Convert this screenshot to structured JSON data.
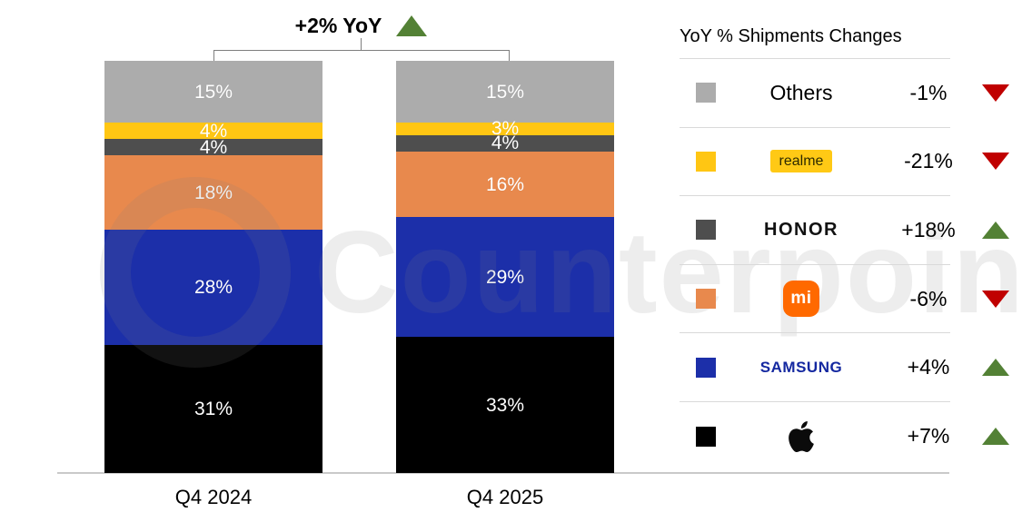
{
  "watermark": "Counterpoint",
  "title": {
    "label": "+2% YoY",
    "direction": "up"
  },
  "chart_data": {
    "type": "bar",
    "stacked": true,
    "title": "+2% YoY",
    "categories": [
      "Q4 2024",
      "Q4 2025"
    ],
    "series": [
      {
        "name": "Apple",
        "color": "#000000",
        "values": [
          31,
          33
        ]
      },
      {
        "name": "Samsung",
        "color": "#1c2fa9",
        "values": [
          28,
          29
        ]
      },
      {
        "name": "Xiaomi",
        "color": "#e8894d",
        "values": [
          18,
          16
        ]
      },
      {
        "name": "HONOR",
        "color": "#4e4e4e",
        "values": [
          4,
          4
        ]
      },
      {
        "name": "realme",
        "color": "#ffc613",
        "values": [
          4,
          3
        ]
      },
      {
        "name": "Others",
        "color": "#acacac",
        "values": [
          15,
          15
        ]
      }
    ],
    "value_suffix": "%",
    "ylim": [
      0,
      100
    ],
    "grid": false,
    "legend_position": "right"
  },
  "legend": {
    "header": "YoY % Shipments Changes",
    "rows": [
      {
        "brand": "Others",
        "brand_display": "Others",
        "change": "-1%",
        "direction": "down",
        "color": "#acacac"
      },
      {
        "brand": "realme",
        "brand_display": "realme",
        "change": "-21%",
        "direction": "down",
        "color": "#ffc613"
      },
      {
        "brand": "HONOR",
        "brand_display": "HONOR",
        "change": "+18%",
        "direction": "up",
        "color": "#4e4e4e"
      },
      {
        "brand": "Xiaomi",
        "logo_text": "mi",
        "change": "-6%",
        "direction": "down",
        "color": "#e8894d"
      },
      {
        "brand": "Samsung",
        "brand_display": "SAMSUNG",
        "change": "+4%",
        "direction": "up",
        "color": "#1c2fa9"
      },
      {
        "brand": "Apple",
        "change": "+7%",
        "direction": "up",
        "color": "#000000"
      }
    ]
  },
  "colors": {
    "up": "#538135",
    "down": "#c00000"
  }
}
